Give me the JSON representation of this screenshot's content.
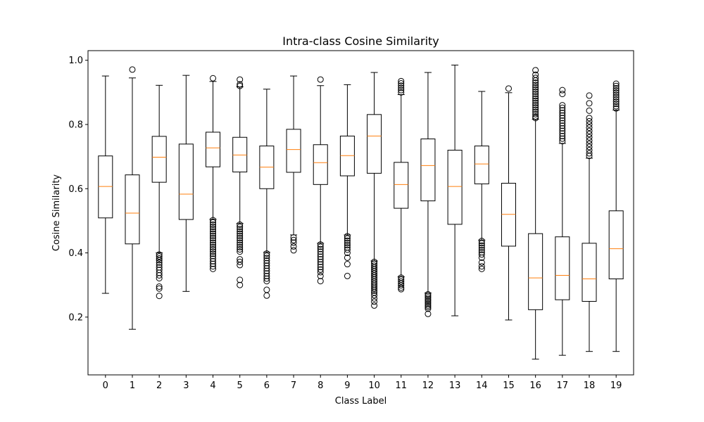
{
  "chart_data": {
    "type": "box",
    "title": "Intra-class Cosine Similarity",
    "xlabel": "Class Label",
    "ylabel": "Cosine Similarity",
    "ylim": [
      0.02,
      1.03
    ],
    "yticks": [
      "0.2",
      "0.4",
      "0.6",
      "0.8",
      "1.0"
    ],
    "grid": false,
    "colors": {
      "box": "#000000",
      "median": "#ff7f0e",
      "flier": "#000000"
    },
    "boxes": [
      {
        "label": "0",
        "whislo": 0.274,
        "q1": 0.509,
        "med": 0.607,
        "q3": 0.702,
        "whishi": 0.951,
        "fliers": []
      },
      {
        "label": "1",
        "whislo": 0.162,
        "q1": 0.428,
        "med": 0.524,
        "q3": 0.643,
        "whishi": 0.945,
        "fliers": [
          0.971
        ]
      },
      {
        "label": "2",
        "whislo": 0.4,
        "q1": 0.62,
        "med": 0.698,
        "q3": 0.763,
        "whishi": 0.922,
        "fliers": [
          0.395,
          0.389,
          0.383,
          0.377,
          0.37,
          0.363,
          0.355,
          0.347,
          0.338,
          0.33,
          0.321,
          0.295,
          0.289,
          0.266
        ]
      },
      {
        "label": "3",
        "whislo": 0.28,
        "q1": 0.504,
        "med": 0.583,
        "q3": 0.739,
        "whishi": 0.953,
        "fliers": []
      },
      {
        "label": "4",
        "whislo": 0.505,
        "q1": 0.668,
        "med": 0.727,
        "q3": 0.776,
        "whishi": 0.934,
        "fliers": [
          0.944,
          0.502,
          0.495,
          0.488,
          0.481,
          0.474,
          0.467,
          0.46,
          0.453,
          0.446,
          0.439,
          0.432,
          0.425,
          0.418,
          0.411,
          0.404,
          0.397,
          0.39,
          0.382,
          0.374,
          0.366,
          0.358,
          0.35
        ]
      },
      {
        "label": "5",
        "whislo": 0.492,
        "q1": 0.652,
        "med": 0.705,
        "q3": 0.76,
        "whishi": 0.917,
        "fliers": [
          0.94,
          0.925,
          0.92,
          0.488,
          0.481,
          0.474,
          0.467,
          0.46,
          0.453,
          0.446,
          0.439,
          0.432,
          0.425,
          0.418,
          0.411,
          0.404,
          0.38,
          0.372,
          0.362,
          0.316,
          0.3
        ]
      },
      {
        "label": "6",
        "whislo": 0.402,
        "q1": 0.6,
        "med": 0.667,
        "q3": 0.733,
        "whishi": 0.91,
        "fliers": [
          0.398,
          0.391,
          0.384,
          0.376,
          0.368,
          0.36,
          0.352,
          0.344,
          0.336,
          0.328,
          0.32,
          0.312,
          0.285,
          0.267
        ]
      },
      {
        "label": "7",
        "whislo": 0.456,
        "q1": 0.651,
        "med": 0.722,
        "q3": 0.785,
        "whishi": 0.951,
        "fliers": [
          0.448,
          0.44,
          0.432,
          0.42,
          0.408
        ]
      },
      {
        "label": "8",
        "whislo": 0.43,
        "q1": 0.613,
        "med": 0.681,
        "q3": 0.737,
        "whishi": 0.921,
        "fliers": [
          0.94,
          0.426,
          0.419,
          0.412,
          0.404,
          0.396,
          0.388,
          0.38,
          0.372,
          0.364,
          0.356,
          0.348,
          0.34,
          0.328,
          0.312
        ]
      },
      {
        "label": "9",
        "whislo": 0.456,
        "q1": 0.64,
        "med": 0.703,
        "q3": 0.764,
        "whishi": 0.924,
        "fliers": [
          0.452,
          0.445,
          0.438,
          0.431,
          0.424,
          0.417,
          0.41,
          0.4,
          0.385,
          0.365,
          0.328
        ]
      },
      {
        "label": "10",
        "whislo": 0.375,
        "q1": 0.648,
        "med": 0.764,
        "q3": 0.831,
        "whishi": 0.962,
        "fliers": [
          0.372,
          0.366,
          0.36,
          0.354,
          0.348,
          0.342,
          0.336,
          0.33,
          0.324,
          0.318,
          0.312,
          0.306,
          0.3,
          0.294,
          0.288,
          0.282,
          0.276,
          0.268,
          0.258,
          0.248,
          0.236
        ]
      },
      {
        "label": "11",
        "whislo": 0.326,
        "q1": 0.539,
        "med": 0.613,
        "q3": 0.682,
        "whishi": 0.893,
        "fliers": [
          0.935,
          0.928,
          0.921,
          0.914,
          0.907,
          0.9,
          0.323,
          0.317,
          0.311,
          0.305,
          0.299,
          0.292,
          0.287
        ]
      },
      {
        "label": "12",
        "whislo": 0.275,
        "q1": 0.562,
        "med": 0.672,
        "q3": 0.755,
        "whishi": 0.962,
        "fliers": [
          0.271,
          0.266,
          0.261,
          0.256,
          0.251,
          0.246,
          0.241,
          0.236,
          0.231,
          0.226,
          0.21
        ]
      },
      {
        "label": "13",
        "whislo": 0.204,
        "q1": 0.489,
        "med": 0.607,
        "q3": 0.72,
        "whishi": 0.985,
        "fliers": []
      },
      {
        "label": "14",
        "whislo": 0.44,
        "q1": 0.615,
        "med": 0.677,
        "q3": 0.733,
        "whishi": 0.903,
        "fliers": [
          0.437,
          0.43,
          0.423,
          0.416,
          0.409,
          0.402,
          0.395,
          0.385,
          0.37,
          0.358,
          0.35
        ]
      },
      {
        "label": "15",
        "whislo": 0.191,
        "q1": 0.421,
        "med": 0.52,
        "q3": 0.617,
        "whishi": 0.899,
        "fliers": [
          0.912
        ]
      },
      {
        "label": "16",
        "whislo": 0.069,
        "q1": 0.223,
        "med": 0.322,
        "q3": 0.46,
        "whishi": 0.816,
        "fliers": [
          0.969,
          0.955,
          0.945,
          0.937,
          0.93,
          0.923,
          0.916,
          0.909,
          0.902,
          0.895,
          0.888,
          0.881,
          0.874,
          0.867,
          0.86,
          0.853,
          0.846,
          0.839,
          0.832,
          0.825,
          0.82
        ]
      },
      {
        "label": "17",
        "whislo": 0.081,
        "q1": 0.254,
        "med": 0.33,
        "q3": 0.45,
        "whishi": 0.741,
        "fliers": [
          0.907,
          0.895,
          0.86,
          0.852,
          0.844,
          0.836,
          0.828,
          0.82,
          0.812,
          0.804,
          0.796,
          0.788,
          0.78,
          0.772,
          0.764,
          0.756,
          0.748
        ]
      },
      {
        "label": "18",
        "whislo": 0.093,
        "q1": 0.249,
        "med": 0.319,
        "q3": 0.43,
        "whishi": 0.695,
        "fliers": [
          0.89,
          0.866,
          0.843,
          0.82,
          0.81,
          0.8,
          0.79,
          0.78,
          0.77,
          0.76,
          0.75,
          0.74,
          0.73,
          0.72,
          0.71,
          0.702
        ]
      },
      {
        "label": "19",
        "whislo": 0.093,
        "q1": 0.319,
        "med": 0.413,
        "q3": 0.531,
        "whishi": 0.845,
        "fliers": [
          0.927,
          0.92,
          0.913,
          0.906,
          0.899,
          0.892,
          0.885,
          0.878,
          0.871,
          0.864,
          0.857,
          0.85
        ]
      }
    ]
  }
}
